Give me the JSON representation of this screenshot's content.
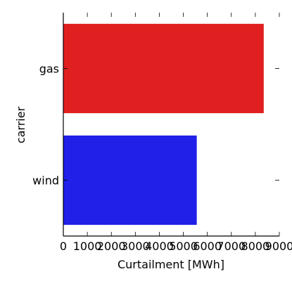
{
  "chart_data": {
    "type": "bar",
    "orientation": "horizontal",
    "categories": [
      "gas",
      "wind"
    ],
    "values": [
      8350,
      5560
    ],
    "colors": [
      "#e02020",
      "#2020e8"
    ],
    "xlabel": "Curtailment [MWh]",
    "ylabel": "carrier",
    "xlim": [
      0,
      9000
    ],
    "xticks": [
      0,
      1000,
      2000,
      3000,
      4000,
      5000,
      6000,
      7000,
      8000,
      9000
    ],
    "xtick_labels": [
      "0",
      "1000",
      "2000",
      "3000",
      "4000",
      "5000",
      "6000",
      "7000",
      "8000",
      "9000"
    ],
    "grid": false,
    "legend": "none"
  }
}
